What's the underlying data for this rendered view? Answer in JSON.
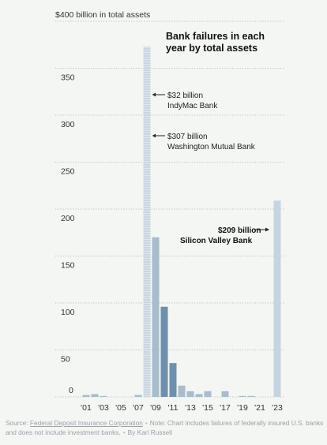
{
  "chart_data": {
    "type": "bar",
    "title": [
      "Bank failures in each",
      "year by total assets"
    ],
    "y_unit_label": "$400 billion in total assets",
    "ylim": [
      0,
      400
    ],
    "y_ticks": [
      0,
      50,
      100,
      150,
      200,
      250,
      300,
      350
    ],
    "y_tick_labels": [
      "0",
      "50",
      "100",
      "150",
      "200",
      "250",
      "300",
      "350"
    ],
    "x_tick_labels": [
      "'01",
      "'03",
      "'05",
      "'07",
      "'09",
      "'11",
      "'13",
      "'15",
      "'17",
      "'19",
      "'21",
      "'23"
    ],
    "categories": [
      "2001",
      "2002",
      "2003",
      "2004",
      "2005",
      "2006",
      "2007",
      "2008",
      "2009",
      "2010",
      "2011",
      "2012",
      "2013",
      "2014",
      "2015",
      "2016",
      "2017",
      "2018",
      "2019",
      "2020",
      "2021",
      "2022",
      "2023"
    ],
    "values": [
      2,
      3,
      1,
      0,
      0,
      0,
      2,
      373,
      170,
      96,
      36,
      12,
      6,
      3,
      6,
      0,
      6,
      0,
      0.5,
      0.5,
      0,
      0,
      209
    ],
    "gridlines": "dotted",
    "annotations": [
      {
        "value_text": "$32 billion",
        "bank": "IndyMac Bank",
        "bold": false
      },
      {
        "value_text": "$307 billion",
        "bank": "Washington Mutual Bank",
        "bold": false
      },
      {
        "value_text": "$209 billion",
        "bank": "Silicon Valley Bank",
        "bold": true
      }
    ],
    "colors": {
      "bar_light": "#c9d6e0",
      "bar_mid": "#a7bccd",
      "bar_dark": "#6f8fae",
      "bar_2023": "#c6d4e0",
      "grid": "#b9bec2",
      "background": "#f4f6f3"
    }
  },
  "footer": {
    "source_label": "Source:",
    "source_name": "Federal Deposit Insurance Corporation",
    "note": "Note: Chart includes failures of federally insured U.S. banks and does not include investment banks.",
    "byline": "By Karl Russell"
  }
}
